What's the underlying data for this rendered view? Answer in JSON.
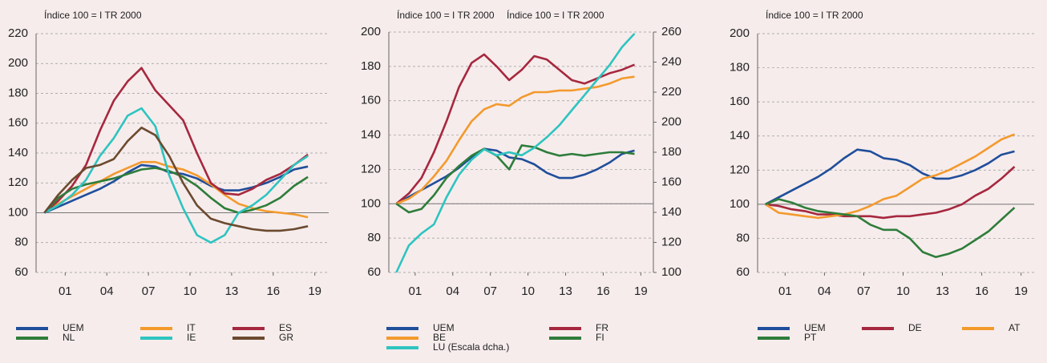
{
  "chart_data": [
    {
      "type": "line",
      "ylabel": "Índice 100 = I TR 2000",
      "x": [
        2000,
        2001,
        2002,
        2003,
        2004,
        2005,
        2006,
        2007,
        2008,
        2009,
        2010,
        2011,
        2012,
        2013,
        2014,
        2015,
        2016,
        2017,
        2018,
        2019
      ],
      "xlim": [
        1999.4,
        2020.5
      ],
      "xticks": [
        {
          "value": 2001.5,
          "label": "01"
        },
        {
          "value": 2004.5,
          "label": "04"
        },
        {
          "value": 2007.5,
          "label": "07"
        },
        {
          "value": 2010.5,
          "label": "10"
        },
        {
          "value": 2013.5,
          "label": "13"
        },
        {
          "value": 2016.5,
          "label": "16"
        },
        {
          "value": 2019.5,
          "label": "19"
        }
      ],
      "ylim": [
        60,
        220
      ],
      "yticks": [
        60,
        80,
        100,
        120,
        140,
        160,
        180,
        200,
        220
      ],
      "hline": 100,
      "grid": true,
      "series": [
        {
          "name": "UEM",
          "color": "#1f4e9a",
          "values": [
            100,
            104,
            108,
            112,
            116,
            121,
            127,
            132,
            131,
            127,
            126,
            123,
            118,
            115,
            115,
            117,
            120,
            124,
            129,
            131
          ]
        },
        {
          "name": "IT",
          "color": "#f39a2d",
          "values": [
            100,
            106,
            111,
            116,
            121,
            126,
            130,
            134,
            134,
            131,
            129,
            125,
            119,
            112,
            106,
            103,
            101,
            100,
            99,
            97
          ]
        },
        {
          "name": "ES",
          "color": "#a6283e",
          "values": [
            100,
            108,
            118,
            132,
            155,
            175,
            188,
            197,
            182,
            172,
            162,
            140,
            120,
            113,
            112,
            116,
            122,
            126,
            132,
            139
          ]
        },
        {
          "name": "NL",
          "color": "#2e7d3a",
          "values": [
            100,
            110,
            116,
            119,
            121,
            123,
            126,
            129,
            130,
            128,
            124,
            118,
            110,
            103,
            100,
            102,
            105,
            110,
            118,
            124
          ]
        },
        {
          "name": "IE",
          "color": "#2ec4c0",
          "values": [
            100,
            105,
            112,
            122,
            138,
            150,
            165,
            170,
            158,
            125,
            103,
            85,
            80,
            85,
            100,
            105,
            112,
            122,
            132,
            138
          ]
        },
        {
          "name": "GR",
          "color": "#6b4a2f",
          "values": [
            100,
            112,
            122,
            130,
            132,
            136,
            148,
            157,
            152,
            138,
            120,
            105,
            96,
            93,
            91,
            89,
            88,
            88,
            89,
            91
          ]
        }
      ]
    },
    {
      "type": "line",
      "ylabel": "Índice 100 = I TR 2000",
      "y2label": "Índice 100 = I TR 2000",
      "x": [
        2000,
        2001,
        2002,
        2003,
        2004,
        2005,
        2006,
        2007,
        2008,
        2009,
        2010,
        2011,
        2012,
        2013,
        2014,
        2015,
        2016,
        2017,
        2018,
        2019
      ],
      "xlim": [
        1999.4,
        2020.5
      ],
      "xticks": [
        {
          "value": 2001.5,
          "label": "01"
        },
        {
          "value": 2004.5,
          "label": "04"
        },
        {
          "value": 2007.5,
          "label": "07"
        },
        {
          "value": 2010.5,
          "label": "10"
        },
        {
          "value": 2013.5,
          "label": "13"
        },
        {
          "value": 2016.5,
          "label": "16"
        },
        {
          "value": 2019.5,
          "label": "19"
        }
      ],
      "ylim": [
        60,
        200
      ],
      "yticks": [
        60,
        80,
        100,
        120,
        140,
        160,
        180,
        200
      ],
      "y2lim": [
        100,
        260
      ],
      "y2ticks": [
        100,
        120,
        140,
        160,
        180,
        200,
        220,
        240,
        260
      ],
      "hline": 100,
      "grid": true,
      "series": [
        {
          "name": "UEM",
          "color": "#1f4e9a",
          "values": [
            100,
            104,
            108,
            112,
            116,
            121,
            127,
            132,
            131,
            127,
            126,
            123,
            118,
            115,
            115,
            117,
            120,
            124,
            129,
            131
          ]
        },
        {
          "name": "FR",
          "color": "#a6283e",
          "values": [
            100,
            106,
            115,
            130,
            148,
            168,
            182,
            187,
            180,
            172,
            178,
            186,
            184,
            178,
            172,
            170,
            173,
            176,
            178,
            181
          ]
        },
        {
          "name": "BE",
          "color": "#f39a2d",
          "values": [
            100,
            103,
            108,
            116,
            125,
            137,
            148,
            155,
            158,
            157,
            162,
            165,
            165,
            166,
            166,
            167,
            168,
            170,
            173,
            174
          ]
        },
        {
          "name": "FI",
          "color": "#2e7d3a",
          "values": [
            100,
            95,
            97,
            105,
            115,
            122,
            128,
            132,
            128,
            120,
            134,
            133,
            130,
            128,
            129,
            128,
            129,
            130,
            130,
            129
          ]
        },
        {
          "name": "LU (Escala dcha.)",
          "color": "#2ec4c0",
          "axis": "y2",
          "values": [
            100,
            118,
            126,
            132,
            150,
            165,
            175,
            182,
            178,
            180,
            178,
            183,
            190,
            198,
            208,
            218,
            228,
            238,
            250,
            259
          ]
        }
      ]
    },
    {
      "type": "line",
      "ylabel": "Índice 100 = I TR 2000",
      "x": [
        2000,
        2001,
        2002,
        2003,
        2004,
        2005,
        2006,
        2007,
        2008,
        2009,
        2010,
        2011,
        2012,
        2013,
        2014,
        2015,
        2016,
        2017,
        2018,
        2019
      ],
      "xlim": [
        1999.4,
        2020.5
      ],
      "xticks": [
        {
          "value": 2001.5,
          "label": "01"
        },
        {
          "value": 2004.5,
          "label": "04"
        },
        {
          "value": 2007.5,
          "label": "07"
        },
        {
          "value": 2010.5,
          "label": "10"
        },
        {
          "value": 2013.5,
          "label": "13"
        },
        {
          "value": 2016.5,
          "label": "16"
        },
        {
          "value": 2019.5,
          "label": "19"
        }
      ],
      "ylim": [
        60,
        200
      ],
      "yticks": [
        60,
        80,
        100,
        120,
        140,
        160,
        180,
        200
      ],
      "hline": 100,
      "grid": true,
      "series": [
        {
          "name": "UEM",
          "color": "#1f4e9a",
          "values": [
            100,
            104,
            108,
            112,
            116,
            121,
            127,
            132,
            131,
            127,
            126,
            123,
            118,
            115,
            115,
            117,
            120,
            124,
            129,
            131
          ]
        },
        {
          "name": "DE",
          "color": "#a6283e",
          "values": [
            100,
            99,
            97,
            96,
            94,
            94,
            93,
            93,
            93,
            92,
            93,
            93,
            94,
            95,
            97,
            100,
            105,
            109,
            115,
            122
          ]
        },
        {
          "name": "AT",
          "color": "#f39a2d",
          "values": [
            100,
            95,
            94,
            93,
            92,
            93,
            94,
            96,
            99,
            103,
            105,
            110,
            115,
            117,
            120,
            124,
            128,
            133,
            138,
            141
          ]
        },
        {
          "name": "PT",
          "color": "#2e7d3a",
          "values": [
            100,
            103,
            101,
            98,
            96,
            95,
            94,
            93,
            88,
            85,
            85,
            80,
            72,
            69,
            71,
            74,
            79,
            84,
            91,
            98
          ]
        }
      ]
    }
  ]
}
